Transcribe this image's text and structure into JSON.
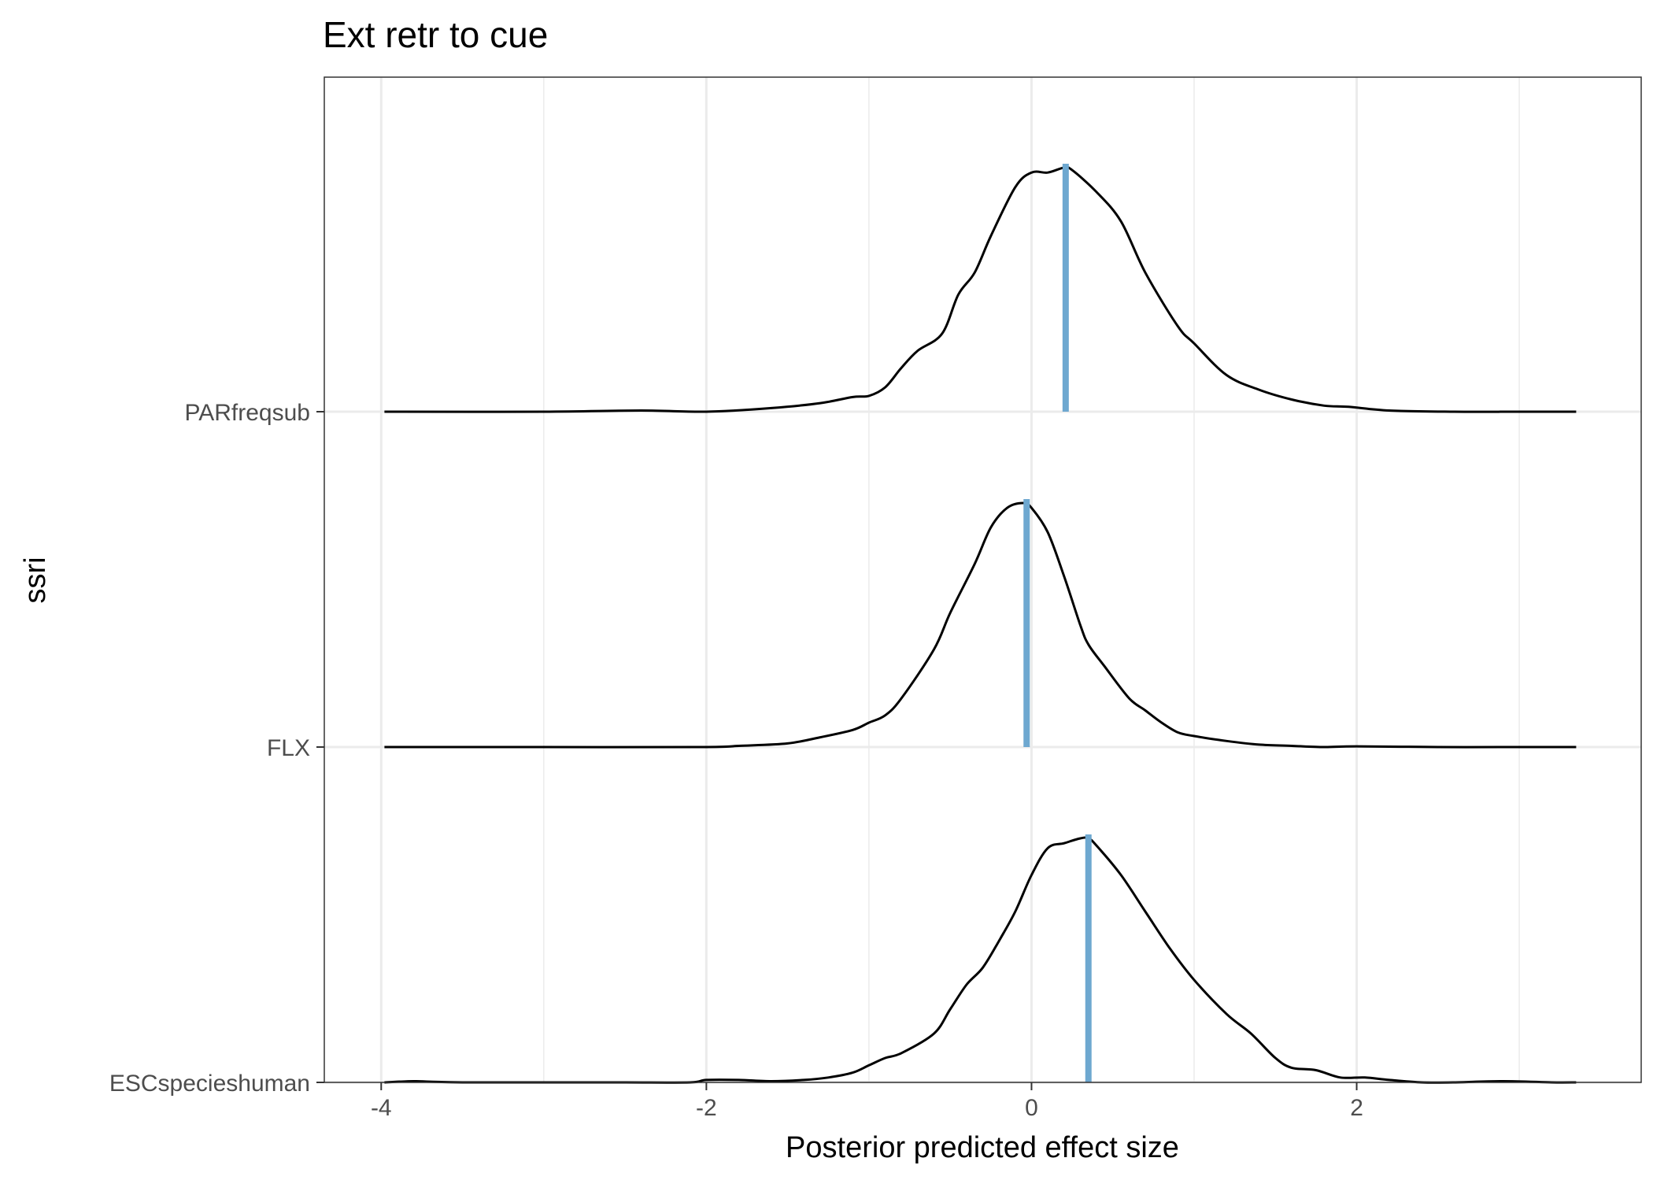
{
  "chart_data": {
    "type": "ridgeline",
    "title": "Ext retr to cue",
    "xlabel": "Posterior predicted effect size",
    "ylabel": "ssri",
    "xlim": [
      -4.35,
      3.75
    ],
    "x_ticks": [
      -4,
      -2,
      0,
      2
    ],
    "x_tick_labels": [
      "-4",
      "-2",
      "0",
      "2"
    ],
    "categories": [
      "ESCspecieshuman",
      "FLX",
      "PARfreqsub"
    ],
    "grid": true,
    "median_line_color": "#6ea8d0",
    "series": [
      {
        "name": "ESCspecieshuman",
        "median": 0.35,
        "density": {
          "x": [
            -3.98,
            -3.8,
            -3.7,
            -3.5,
            -3.0,
            -2.5,
            -2.1,
            -2.0,
            -1.8,
            -1.6,
            -1.4,
            -1.25,
            -1.1,
            -1.0,
            -0.9,
            -0.8,
            -0.6,
            -0.5,
            -0.4,
            -0.3,
            -0.2,
            -0.1,
            0.0,
            0.1,
            0.2,
            0.3,
            0.35,
            0.4,
            0.55,
            0.7,
            0.85,
            1.0,
            1.2,
            1.35,
            1.5,
            1.6,
            1.75,
            1.9,
            2.05,
            2.2,
            2.4,
            2.6,
            2.9,
            3.2,
            3.35
          ],
          "y": [
            0.0,
            0.005,
            0.003,
            0.0,
            0.0,
            0.0,
            0.0,
            0.01,
            0.01,
            0.005,
            0.01,
            0.02,
            0.04,
            0.07,
            0.1,
            0.12,
            0.2,
            0.3,
            0.4,
            0.47,
            0.58,
            0.7,
            0.85,
            0.96,
            0.98,
            1.0,
            1.0,
            0.97,
            0.85,
            0.7,
            0.55,
            0.42,
            0.28,
            0.2,
            0.1,
            0.06,
            0.05,
            0.02,
            0.02,
            0.01,
            0.0,
            0.0,
            0.005,
            0.0,
            0.0
          ]
        }
      },
      {
        "name": "FLX",
        "median": -0.03,
        "density": {
          "x": [
            -3.98,
            -3.0,
            -2.0,
            -1.8,
            -1.5,
            -1.3,
            -1.1,
            -1.0,
            -0.9,
            -0.8,
            -0.6,
            -0.5,
            -0.35,
            -0.25,
            -0.15,
            -0.05,
            0.0,
            0.1,
            0.2,
            0.3,
            0.35,
            0.45,
            0.6,
            0.7,
            0.8,
            0.9,
            1.0,
            1.2,
            1.4,
            1.6,
            1.8,
            2.0,
            2.5,
            3.0,
            3.35
          ],
          "y": [
            0.0,
            0.0,
            0.0,
            0.005,
            0.015,
            0.04,
            0.07,
            0.1,
            0.13,
            0.2,
            0.4,
            0.55,
            0.75,
            0.9,
            0.98,
            1.0,
            0.98,
            0.88,
            0.7,
            0.5,
            0.42,
            0.33,
            0.2,
            0.15,
            0.1,
            0.06,
            0.045,
            0.025,
            0.01,
            0.005,
            0.0,
            0.003,
            0.0,
            0.0,
            0.0
          ]
        }
      },
      {
        "name": "PARfreqsub",
        "median": 0.21,
        "density": {
          "x": [
            -3.98,
            -3.0,
            -2.4,
            -2.0,
            -1.6,
            -1.3,
            -1.1,
            -1.0,
            -0.9,
            -0.8,
            -0.7,
            -0.55,
            -0.45,
            -0.35,
            -0.25,
            -0.1,
            0.0,
            0.1,
            0.2,
            0.25,
            0.4,
            0.55,
            0.7,
            0.9,
            1.0,
            1.2,
            1.4,
            1.6,
            1.8,
            1.95,
            2.2,
            2.6,
            3.0,
            3.35
          ],
          "y": [
            0.0,
            0.0,
            0.005,
            0.0,
            0.015,
            0.035,
            0.06,
            0.065,
            0.1,
            0.18,
            0.25,
            0.32,
            0.48,
            0.57,
            0.72,
            0.92,
            0.98,
            0.98,
            1.0,
            0.99,
            0.9,
            0.78,
            0.57,
            0.35,
            0.28,
            0.15,
            0.09,
            0.05,
            0.025,
            0.02,
            0.005,
            0.0,
            0.0,
            0.0
          ]
        }
      }
    ]
  }
}
